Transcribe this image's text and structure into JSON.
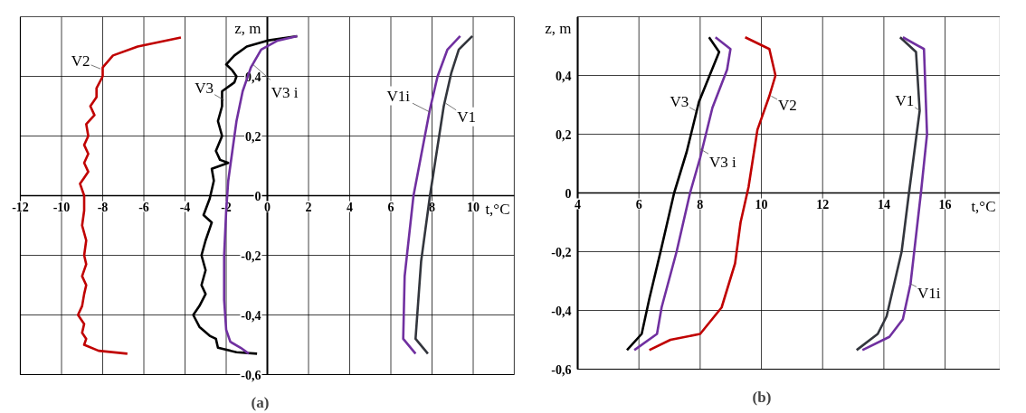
{
  "chart_data": [
    {
      "type": "line",
      "title": "(a)",
      "xlabel": "t,°C",
      "ylabel": "z, m",
      "grid": true,
      "xlim": [
        -12,
        12
      ],
      "ylim": [
        -0.6,
        0.6
      ],
      "xticks": [
        -12,
        -10,
        -8,
        -6,
        -4,
        -2,
        0,
        2,
        4,
        6,
        8,
        10,
        {
          "value": 12,
          "label": null
        }
      ],
      "yticks": [
        {
          "value": -0.6,
          "label": "-0,6"
        },
        {
          "value": -0.4,
          "label": "-0,4"
        },
        {
          "value": -0.2,
          "label": "-0,2"
        },
        0,
        {
          "value": 0.2,
          "label": "0,2"
        },
        {
          "value": 0.4,
          "label": "0,4"
        },
        {
          "value": 0.6,
          "label": null
        }
      ],
      "series": [
        {
          "color": "#c00000",
          "x": [
            -4.2,
            -6.3,
            -7.5,
            -8.0,
            -8.0,
            -8.3,
            -8.3,
            -8.6,
            -8.4,
            -8.8,
            -8.7,
            -8.9,
            -8.7,
            -8.9,
            -8.7,
            -8.9,
            -9.1,
            -8.9,
            -8.9,
            -9.0,
            -8.8,
            -8.9,
            -8.8,
            -9.0,
            -8.8,
            -8.9,
            -9.0,
            -9.2,
            -8.9,
            -9.0,
            -8.8,
            -8.9,
            -8.2,
            -6.8
          ],
          "values": [
            0.53,
            0.5,
            0.47,
            0.43,
            0.4,
            0.36,
            0.33,
            0.3,
            0.27,
            0.24,
            0.2,
            0.17,
            0.14,
            0.11,
            0.08,
            0.06,
            0.04,
            0.0,
            -0.05,
            -0.1,
            -0.15,
            -0.2,
            -0.23,
            -0.27,
            -0.3,
            -0.33,
            -0.37,
            -0.4,
            -0.43,
            -0.46,
            -0.48,
            -0.5,
            -0.52,
            -0.53
          ]
        },
        {
          "color": "#000000",
          "x": [
            1.45,
            0.0,
            -1.0,
            -1.6,
            -2.0,
            -1.7,
            -1.5,
            -1.6,
            -2.2,
            -2.2,
            -2.4,
            -2.2,
            -2.5,
            -2.3,
            -1.9,
            -2.7,
            -2.6,
            -2.8,
            -3.1,
            -2.7,
            -3.0,
            -3.2,
            -3.0,
            -3.2,
            -3.0,
            -3.3,
            -3.6,
            -3.3,
            -2.8,
            -2.5,
            -2.4,
            -1.5,
            -0.5
          ],
          "values": [
            0.535,
            0.52,
            0.5,
            0.47,
            0.44,
            0.42,
            0.4,
            0.38,
            0.35,
            0.3,
            0.25,
            0.2,
            0.15,
            0.12,
            0.11,
            0.09,
            0.05,
            -0.01,
            -0.065,
            -0.09,
            -0.15,
            -0.2,
            -0.25,
            -0.3,
            -0.33,
            -0.37,
            -0.4,
            -0.44,
            -0.47,
            -0.48,
            -0.51,
            -0.525,
            -0.53
          ]
        },
        {
          "color": "#7030a0",
          "x": [
            1.45,
            0.5,
            -0.3,
            -0.8,
            -1.2,
            -1.5,
            -1.7,
            -1.9,
            -2.0,
            -2.1,
            -2.1,
            -2.0,
            -1.8,
            -1.3,
            -0.9
          ],
          "values": [
            0.535,
            0.52,
            0.49,
            0.43,
            0.35,
            0.25,
            0.15,
            0.05,
            -0.05,
            -0.2,
            -0.35,
            -0.45,
            -0.49,
            -0.51,
            -0.53
          ]
        },
        {
          "color": "#33363d",
          "x": [
            9.96,
            9.3,
            8.93,
            8.57,
            7.9,
            7.47,
            7.2,
            7.8
          ],
          "values": [
            0.535,
            0.49,
            0.41,
            0.3,
            0.0,
            -0.22,
            -0.48,
            -0.53
          ]
        },
        {
          "color": "#7030a0",
          "x": [
            9.37,
            8.75,
            8.27,
            7.9,
            7.1,
            6.67,
            6.6,
            7.2
          ],
          "values": [
            0.535,
            0.49,
            0.4,
            0.29,
            0.0,
            -0.27,
            -0.48,
            -0.53
          ]
        }
      ],
      "annotations": [
        {
          "text": "V2",
          "x": -8.1,
          "y": 0.425
        },
        {
          "text": "V3",
          "x": -2.1,
          "y": 0.32
        },
        {
          "text": "V3 i",
          "x": -0.7,
          "y": 0.44
        },
        {
          "text": "V1i",
          "x": 7.9,
          "y": 0.28
        },
        {
          "text": "V1",
          "x": 8.66,
          "y": 0.31
        }
      ]
    },
    {
      "type": "line",
      "title": "(b)",
      "xlabel": "t,°C",
      "ylabel": "z, m",
      "grid": true,
      "xlim": [
        4,
        17.8
      ],
      "ylim": [
        -0.6,
        0.6
      ],
      "xticks": [
        4,
        6,
        8,
        10,
        12,
        14,
        16
      ],
      "yticks": [
        {
          "value": -0.6,
          "label": "-0,6"
        },
        {
          "value": -0.4,
          "label": "-0,4"
        },
        {
          "value": -0.2,
          "label": "-0,2"
        },
        0,
        {
          "value": 0.2,
          "label": "0,2"
        },
        {
          "value": 0.4,
          "label": "0,4"
        },
        {
          "value": 0.6,
          "label": null
        }
      ],
      "series": [
        {
          "color": "#000000",
          "x": [
            8.29,
            8.62,
            7.96,
            7.56,
            7.15,
            6.74,
            6.34,
            6.09,
            5.61
          ],
          "values": [
            0.53,
            0.48,
            0.31,
            0.14,
            0.0,
            -0.185,
            -0.36,
            -0.48,
            -0.535
          ]
        },
        {
          "color": "#7030a0",
          "x": [
            8.5,
            8.99,
            8.88,
            8.4,
            8.0,
            7.67,
            7.23,
            6.74,
            6.59,
            5.85
          ],
          "values": [
            0.53,
            0.49,
            0.42,
            0.29,
            0.12,
            0.0,
            -0.2,
            -0.39,
            -0.48,
            -0.535
          ]
        },
        {
          "color": "#c00000",
          "x": [
            9.47,
            10.26,
            10.46,
            10.26,
            9.87,
            9.58,
            9.32,
            9.14,
            8.7,
            8.0,
            7.03,
            6.34
          ],
          "values": [
            0.53,
            0.49,
            0.4,
            0.33,
            0.215,
            0.02,
            -0.1,
            -0.24,
            -0.39,
            -0.48,
            -0.5,
            -0.535
          ]
        },
        {
          "color": "#33363d",
          "x": [
            14.53,
            15.05,
            15.17,
            14.82,
            14.58,
            14.09,
            13.8,
            13.11
          ],
          "values": [
            0.53,
            0.48,
            0.28,
            0.0,
            -0.2,
            -0.42,
            -0.48,
            -0.535
          ]
        },
        {
          "color": "#7030a0",
          "x": [
            14.62,
            15.31,
            15.41,
            15.21,
            14.87,
            14.62,
            14.18,
            13.3
          ],
          "values": [
            0.53,
            0.49,
            0.2,
            0.0,
            -0.31,
            -0.43,
            -0.49,
            -0.535
          ]
        }
      ],
      "annotations": [
        {
          "text": "V3",
          "x": 7.85,
          "y": 0.28
        },
        {
          "text": "V3 i",
          "x": 8.0,
          "y": 0.15
        },
        {
          "text": "V2",
          "x": 10.32,
          "y": 0.33
        },
        {
          "text": "V1",
          "x": 15.18,
          "y": 0.28
        },
        {
          "text": "V1i",
          "x": 14.88,
          "y": -0.31
        }
      ]
    }
  ]
}
